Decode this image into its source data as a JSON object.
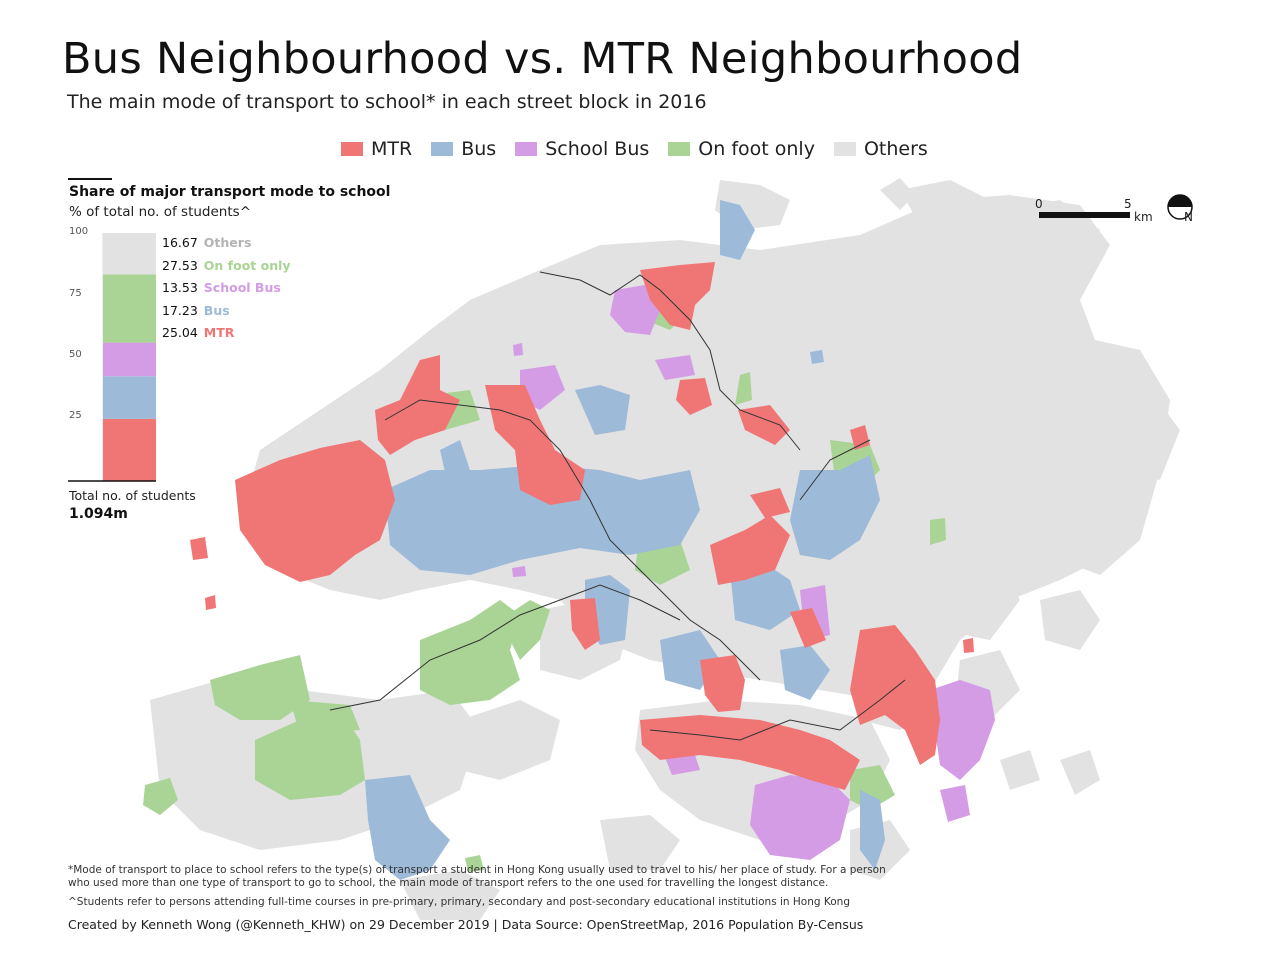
{
  "title": "Bus Neighbourhood vs. MTR Neighbourhood",
  "subtitle": "The main mode of transport to school* in each street block in 2016",
  "legend": [
    {
      "label": "MTR",
      "color": "#f07676"
    },
    {
      "label": "Bus",
      "color": "#9dbad8"
    },
    {
      "label": "School Bus",
      "color": "#d49ce4"
    },
    {
      "label": "On foot only",
      "color": "#a9d495"
    },
    {
      "label": "Others",
      "color": "#e2e2e2"
    }
  ],
  "share_panel": {
    "title": "Share of major transport mode to school",
    "subtitle": "% of total no. of students^",
    "axis_ticks": [
      "100",
      "75",
      "50",
      "25"
    ],
    "total_label": "Total no. of students",
    "total_value": "1.094m"
  },
  "chart_data": {
    "type": "bar",
    "stacked": true,
    "ylim": [
      0,
      100
    ],
    "categories": [
      "Share"
    ],
    "series": [
      {
        "name": "MTR",
        "values": [
          25.04
        ],
        "display": "25.04",
        "color": "#f07676"
      },
      {
        "name": "Bus",
        "values": [
          17.23
        ],
        "display": "17.23",
        "color": "#9dbad8"
      },
      {
        "name": "School Bus",
        "values": [
          13.53
        ],
        "display": "13.53",
        "color": "#d49ce4"
      },
      {
        "name": "On foot only",
        "values": [
          27.53
        ],
        "display": "27.53",
        "color": "#a9d495"
      },
      {
        "name": "Others",
        "values": [
          16.67
        ],
        "display": "16.67",
        "color": "#b3b3b3"
      }
    ]
  },
  "scale_bar": {
    "min_label": "0",
    "max_label": "5",
    "unit": "km",
    "north_label": "N"
  },
  "footnotes": [
    "*Mode of transport to place to school refers to the type(s) of transport a student in Hong Kong usually used to travel to his/ her place of study. For a person who used more than one type of transport to go to school, the main mode of transport refers to the one used for travelling the longest distance.",
    "^Students refer to persons attending full-time courses in pre-primary, primary, secondary and post-secondary educational institutions in Hong Kong"
  ],
  "credit": "Created by Kenneth Wong (@Kenneth_KHW) on 29 December 2019 | Data Source: OpenStreetMap,  2016 Population By-Census"
}
